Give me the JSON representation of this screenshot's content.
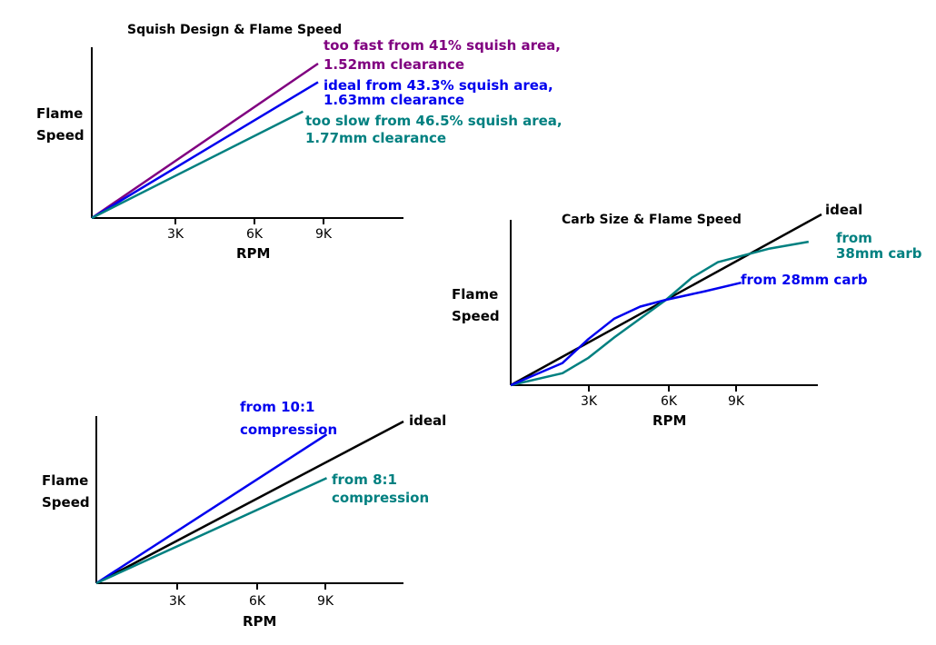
{
  "chart_data": [
    {
      "type": "line",
      "title": "Squish Design & Flame Speed",
      "xlabel": "RPM",
      "ylabel": [
        "Flame",
        "Speed"
      ],
      "x_ticks": [
        "3K",
        "6K",
        "9K"
      ],
      "series": [
        {
          "name": [
            "too fast from 41% squish area,",
            "1.52mm clearance"
          ],
          "color": "#800080",
          "points": [
            [
              0,
              0
            ],
            [
              9000,
              1.0
            ]
          ]
        },
        {
          "name": [
            "ideal from 43.3% squish area,",
            "1.63mm clearance"
          ],
          "color": "#0000ee",
          "points": [
            [
              0,
              0
            ],
            [
              9000,
              0.88
            ]
          ]
        },
        {
          "name": [
            "too slow from 46.5% squish area,",
            "1.77mm clearance"
          ],
          "color": "#008080",
          "points": [
            [
              0,
              0
            ],
            [
              8400,
              0.69
            ]
          ]
        }
      ]
    },
    {
      "type": "line",
      "title": "Carb Size & Flame Speed",
      "xlabel": "RPM",
      "ylabel": [
        "Flame",
        "Speed"
      ],
      "x_ticks": [
        "3K",
        "6K",
        "9K"
      ],
      "series": [
        {
          "name": [
            "ideal"
          ],
          "color": "#000000",
          "points": [
            [
              0,
              0
            ],
            [
              12000,
              1.0
            ]
          ]
        },
        {
          "name": [
            "from",
            "38mm carb"
          ],
          "color": "#008080",
          "points": [
            [
              0,
              0
            ],
            [
              2000,
              0.07
            ],
            [
              3000,
              0.16
            ],
            [
              4000,
              0.28
            ],
            [
              6000,
              0.5
            ],
            [
              7000,
              0.63
            ],
            [
              8000,
              0.72
            ],
            [
              10000,
              0.8
            ],
            [
              11500,
              0.84
            ]
          ]
        },
        {
          "name": [
            "from 28mm carb"
          ],
          "color": "#0000ee",
          "points": [
            [
              0,
              0
            ],
            [
              2000,
              0.13
            ],
            [
              3000,
              0.27
            ],
            [
              4000,
              0.39
            ],
            [
              5000,
              0.46
            ],
            [
              6000,
              0.5
            ],
            [
              7500,
              0.55
            ],
            [
              8900,
              0.6
            ]
          ]
        }
      ]
    },
    {
      "type": "line",
      "title": "",
      "xlabel": "RPM",
      "ylabel": [
        "Flame",
        "Speed"
      ],
      "x_ticks": [
        "3K",
        "6K",
        "9K"
      ],
      "series": [
        {
          "name": [
            "ideal"
          ],
          "color": "#000000",
          "points": [
            [
              0,
              0
            ],
            [
              12000,
              1.0
            ]
          ]
        },
        {
          "name": [
            "from 10:1",
            "compression"
          ],
          "color": "#0000ee",
          "points": [
            [
              0,
              0
            ],
            [
              9000,
              0.92
            ]
          ]
        },
        {
          "name": [
            "from 8:1",
            "compression"
          ],
          "color": "#008080",
          "points": [
            [
              0,
              0
            ],
            [
              9000,
              0.65
            ]
          ]
        }
      ]
    }
  ]
}
